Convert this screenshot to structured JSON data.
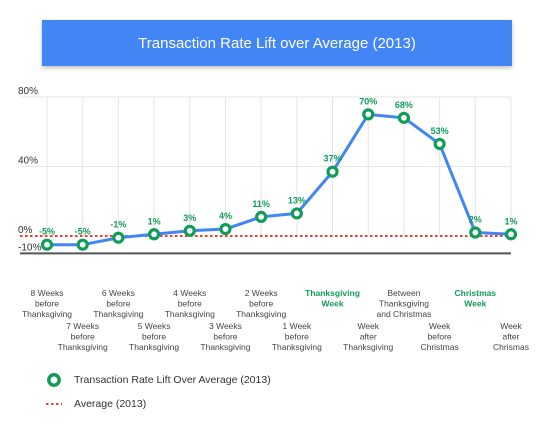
{
  "chart_data": {
    "type": "line",
    "title": "Transaction Rate Lift over Average (2013)",
    "categories": [
      "8 Weeks before Thanksgiving",
      "7 Weeks before Thanksgiving",
      "6 Weeks before Thanksgiving",
      "5 Weeks before Thanksgiving",
      "4 Weeks before Thanksgiving",
      "3 Weeks before Thanksgiving",
      "2 Weeks before Thanksgiving",
      "1 Week before Thanksgiving",
      "Thanksgiving Week",
      "Week after Thanksgiving",
      "Between Thanksgiving and Christmas",
      "Week before Christmas",
      "Christmas Week",
      "Week after Chrismas"
    ],
    "category_lines": [
      [
        "8 Weeks",
        "before",
        "Thanksgiving"
      ],
      [
        "7 Weeks",
        "before",
        "Thanksgiving"
      ],
      [
        "6 Weeks",
        "before",
        "Thanksgiving"
      ],
      [
        "5 Weeks",
        "before",
        "Thanksgiving"
      ],
      [
        "4 Weeks",
        "before",
        "Thanksgiving"
      ],
      [
        "3 Weeks",
        "before",
        "Thanksgiving"
      ],
      [
        "2 Weeks",
        "before",
        "Thanksgiving"
      ],
      [
        "1 Week",
        "before",
        "Thanksgiving"
      ],
      [
        "Thanksgiving",
        "Week"
      ],
      [
        "Week",
        "after",
        "Thanksgiving"
      ],
      [
        "Between",
        "Thanksgiving",
        "and Christmas"
      ],
      [
        "Week",
        "before",
        "Christmas"
      ],
      [
        "Christmas",
        "Week"
      ],
      [
        "Week",
        "after",
        "Chrismas"
      ]
    ],
    "highlight_categories": [
      8,
      12
    ],
    "series": [
      {
        "name": "Transaction Rate Lift Over Average (2013)",
        "values": [
          -5,
          -5,
          -1,
          1,
          3,
          4,
          11,
          13,
          37,
          70,
          68,
          53,
          2,
          1
        ],
        "labels": [
          "-5%",
          "-5%",
          "-1%",
          "1%",
          "3%",
          "4%",
          "11%",
          "13%",
          "37%",
          "70%",
          "68%",
          "53%",
          "2%",
          "1%"
        ],
        "color": "#4285f4",
        "marker_color": "#0f9d58"
      },
      {
        "name": "Average (2013)",
        "value": 0,
        "color": "#ea4335",
        "style": "dotted"
      }
    ],
    "yticks": [
      80,
      40,
      0,
      -10
    ],
    "ytick_labels": [
      "80%",
      "40%",
      "0%",
      "-10%"
    ],
    "ylim": [
      -10,
      80
    ],
    "grid": true,
    "legend_position": "bottom-left"
  },
  "colors": {
    "header": "#4285f4",
    "highlight": "#0f9d58",
    "axis": "#555555"
  }
}
